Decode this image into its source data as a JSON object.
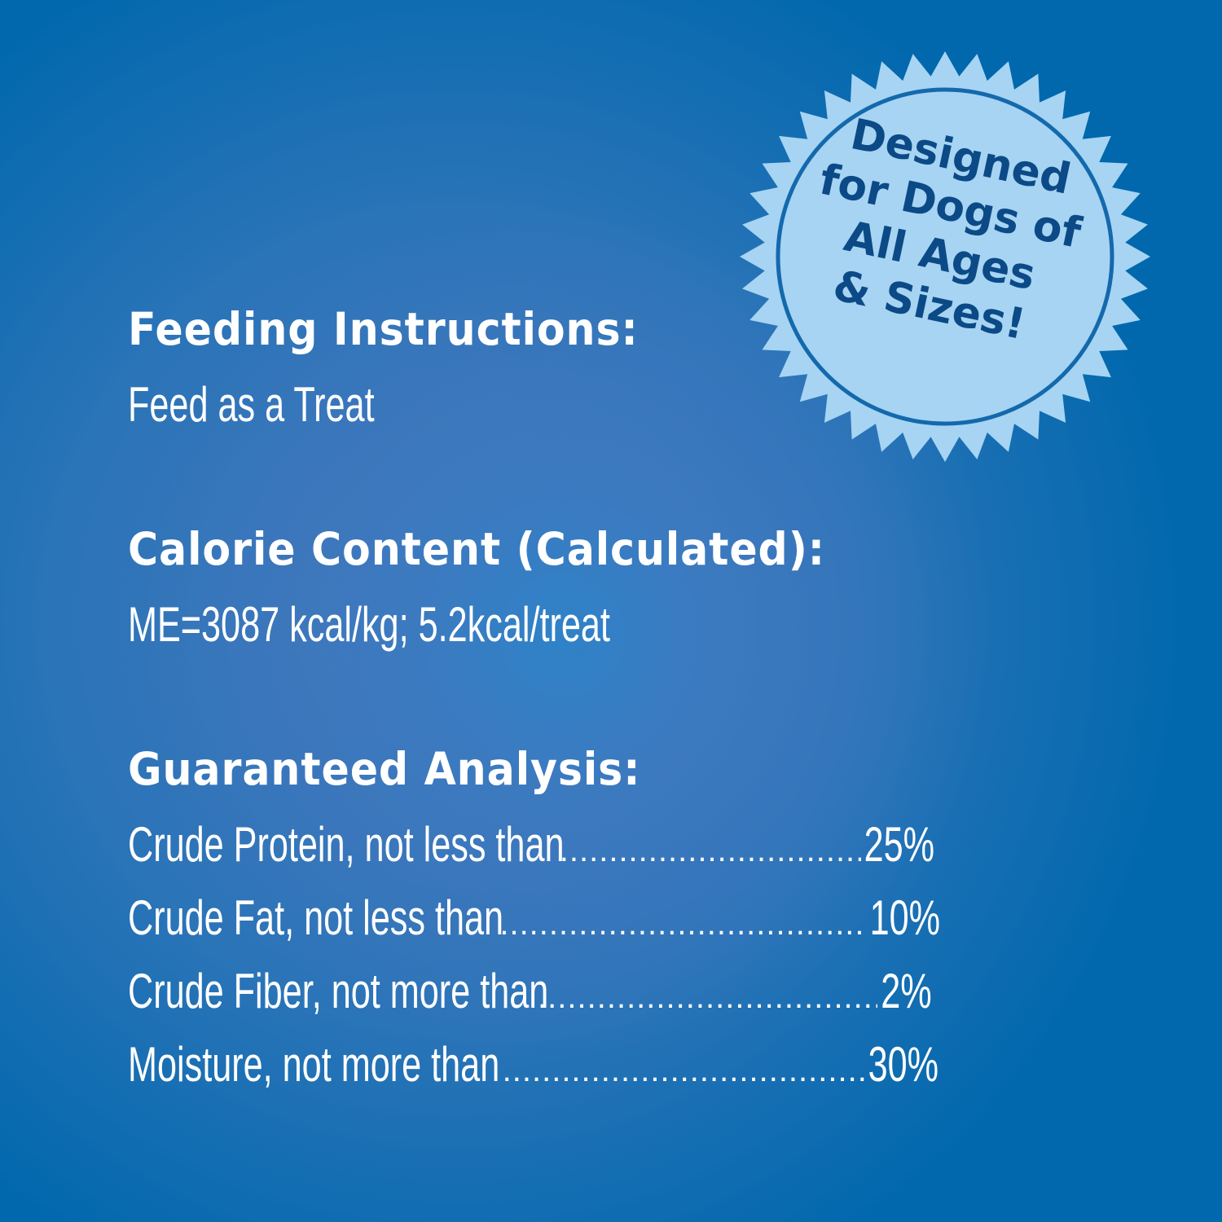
{
  "colors": {
    "background": "#0168ad",
    "background_center": "#3f7bbf",
    "text": "#ffffff",
    "badge_fill": "#a6d4f2",
    "badge_ring": "#1469ad",
    "badge_text": "#0b4a86"
  },
  "badge": {
    "icon": "starburst-seal-icon",
    "lines": [
      "Designed",
      "for Dogs of",
      "All Ages",
      "& Sizes!"
    ]
  },
  "feeding": {
    "heading": "Feeding Instructions:",
    "text": "Feed as a Treat"
  },
  "calorie": {
    "heading": "Calorie Content (Calculated):",
    "text": "ME=3087 kcal/kg; 5.2kcal/treat"
  },
  "analysis": {
    "heading": "Guaranteed Analysis:",
    "rows": [
      {
        "label": "Crude Protein, not less than",
        "value": "25%"
      },
      {
        "label": "Crude Fat, not less than",
        "value": "10%"
      },
      {
        "label": "Crude Fiber, not more than",
        "value": "2%"
      },
      {
        "label": "Moisture, not more than",
        "value": "30%"
      }
    ]
  },
  "dots": "................................................................................................"
}
